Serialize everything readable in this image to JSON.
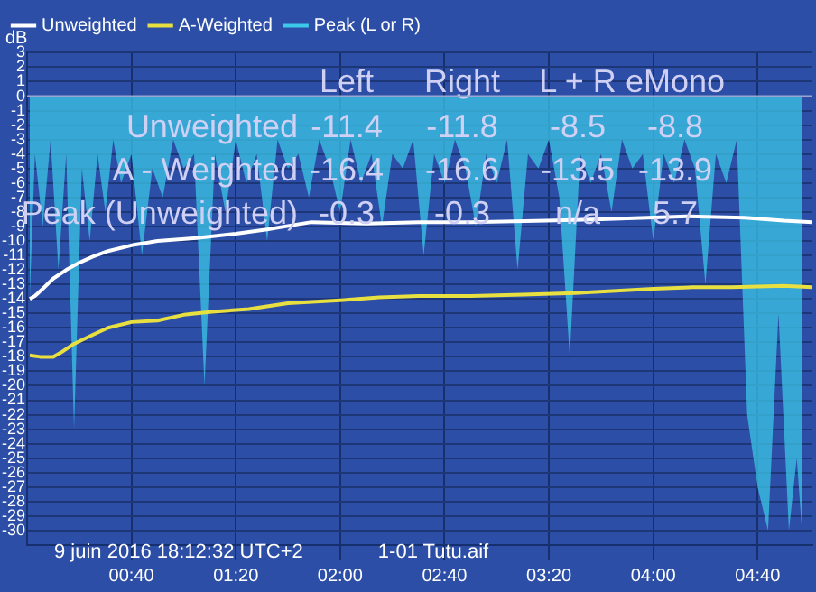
{
  "chart_data": {
    "type": "line",
    "ylabel": "dB",
    "legend": "top left",
    "grid": true,
    "ref_lines": [
      {
        "axis": "y",
        "value": 0,
        "color": "#9aa6d0"
      }
    ],
    "xlim": [
      0,
      301
    ],
    "ylim": [
      -31,
      3
    ],
    "xticks": [
      {
        "value": 40,
        "label": "00:40"
      },
      {
        "value": 80,
        "label": "01:20"
      },
      {
        "value": 120,
        "label": "02:00"
      },
      {
        "value": 160,
        "label": "02:40"
      },
      {
        "value": 200,
        "label": "03:20"
      },
      {
        "value": 240,
        "label": "04:00"
      },
      {
        "value": 280,
        "label": "04:40"
      }
    ],
    "yticks": [
      3,
      2,
      1,
      0,
      -1,
      -2,
      -3,
      -4,
      -5,
      -6,
      -7,
      -8,
      -9,
      -10,
      -11,
      -12,
      -13,
      -14,
      -15,
      -16,
      -17,
      -18,
      -19,
      -20,
      -21,
      -22,
      -23,
      -24,
      -25,
      -26,
      -27,
      -28,
      -29,
      -30
    ],
    "annotations": [
      "Left",
      "Right",
      "L + R",
      "eMono",
      "Unweighted",
      "-11.4",
      "-11.8",
      "-8.5",
      "-8.8",
      "A - Weighted",
      "-16.4",
      "-16.6",
      "-13.5",
      "-13.9",
      "Peak (Unweighted)",
      "-0.3",
      "-0.3",
      "n/a",
      "5.7",
      "9 juin 2016 18:12:32 UTC+2",
      "1-01 Tutu.aif"
    ],
    "series": [
      {
        "name": "Peak (L or R)",
        "type": "area",
        "color": "#3cc8e8",
        "x": [
          1,
          3,
          6,
          9,
          12,
          15,
          18,
          21,
          24,
          27,
          30,
          33,
          36,
          40,
          44,
          48,
          52,
          56,
          60,
          64,
          68,
          72,
          76,
          80,
          84,
          88,
          92,
          96,
          100,
          104,
          108,
          112,
          116,
          120,
          124,
          128,
          132,
          136,
          140,
          144,
          148,
          152,
          156,
          160,
          164,
          168,
          172,
          176,
          180,
          184,
          188,
          192,
          196,
          200,
          204,
          208,
          212,
          216,
          220,
          224,
          228,
          232,
          236,
          240,
          244,
          248,
          252,
          256,
          260,
          264,
          268,
          272,
          276,
          280,
          284,
          288,
          292,
          295,
          297
        ],
        "values": [
          -14,
          -4,
          -9,
          -3,
          -12,
          -4,
          -23,
          -5,
          -10,
          -4,
          -8,
          -3,
          -6,
          -4,
          -11,
          -5,
          -7,
          -3,
          -5,
          -4,
          -20,
          -4,
          -8,
          -3,
          -6,
          -4,
          -10,
          -3,
          -5,
          -4,
          -7,
          -3,
          -5,
          -8,
          -3,
          -6,
          -4,
          -9,
          -4,
          -5,
          -3,
          -11,
          -4,
          -6,
          -3,
          -5,
          -9,
          -4,
          -6,
          -3,
          -12,
          -4,
          -5,
          -3,
          -7,
          -18,
          -4,
          -6,
          -4,
          -8,
          -3,
          -5,
          -4,
          -10,
          -4,
          -6,
          -3,
          -5,
          -13,
          -4,
          -6,
          -3,
          -22,
          -27,
          -30,
          -15,
          -30,
          -25,
          -30
        ]
      },
      {
        "name": "Unweighted",
        "color": "#ffffff",
        "x": [
          1,
          3,
          6,
          10,
          15,
          20,
          25,
          31,
          40,
          50,
          65,
          80,
          92,
          109,
          130,
          150,
          170,
          199,
          220,
          253,
          275,
          290,
          301
        ],
        "values": [
          -14,
          -13.8,
          -13.3,
          -12.6,
          -12,
          -11.5,
          -11.1,
          -10.7,
          -10.3,
          -10,
          -9.8,
          -9.5,
          -9.2,
          -8.7,
          -8.8,
          -8.7,
          -8.7,
          -8.6,
          -8.5,
          -8.3,
          -8.4,
          -8.6,
          -8.7
        ]
      },
      {
        "name": "A-Weighted",
        "color": "#e8e040",
        "x": [
          1,
          5,
          10,
          13,
          18,
          25,
          31,
          40,
          50,
          60,
          70,
          85,
          100,
          120,
          135,
          150,
          170,
          190,
          210,
          240,
          255,
          270,
          290,
          301
        ],
        "values": [
          -17.9,
          -18,
          -18,
          -17.7,
          -17.1,
          -16.5,
          -16,
          -15.6,
          -15.5,
          -15.1,
          -14.9,
          -14.7,
          -14.3,
          -14.1,
          -13.9,
          -13.8,
          -13.8,
          -13.7,
          -13.6,
          -13.3,
          -13.2,
          -13.2,
          -13.1,
          -13.2
        ]
      }
    ]
  }
}
